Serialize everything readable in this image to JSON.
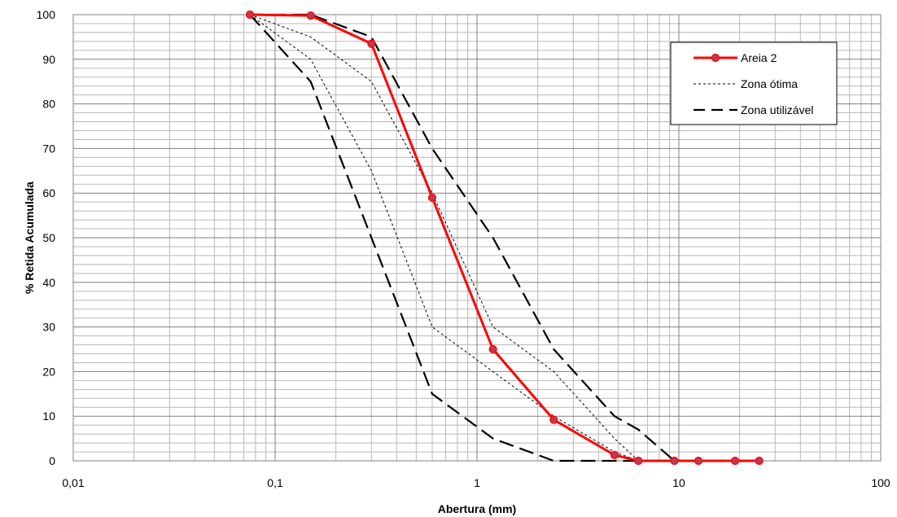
{
  "chart_data": {
    "type": "line",
    "xscale": "log",
    "xlim": [
      0.01,
      100
    ],
    "ylim": [
      0,
      100
    ],
    "xlabel": "Abertura (mm)",
    "ylabel": "% Retida Acumulada",
    "xtick_labels": [
      "0,01",
      "0,1",
      "1",
      "10",
      "100"
    ],
    "ytick_labels": [
      "0",
      "10",
      "20",
      "30",
      "40",
      "50",
      "60",
      "70",
      "80",
      "90",
      "100"
    ],
    "grid": true,
    "legend_position": "top-right",
    "legend": [
      "Areia 2",
      "Zona ótima",
      "Zona utilizável"
    ],
    "series": [
      {
        "name": "Areia 2",
        "style": "solid-markers",
        "color": "#ff0000",
        "marker_color": "#c0394f",
        "points": [
          [
            0.075,
            100
          ],
          [
            0.15,
            99.8
          ],
          [
            0.3,
            93.5
          ],
          [
            0.6,
            59
          ],
          [
            1.2,
            25
          ],
          [
            2.4,
            9.2
          ],
          [
            4.8,
            1.3
          ],
          [
            6.3,
            0
          ],
          [
            9.5,
            0
          ],
          [
            12.5,
            0
          ],
          [
            19,
            0
          ],
          [
            25,
            0
          ]
        ]
      },
      {
        "name": "Zona ótima",
        "style": "dotted",
        "color": "#000000",
        "points": [
          [
            0.075,
            100
          ],
          [
            0.15,
            95
          ],
          [
            0.3,
            85
          ],
          [
            0.6,
            60
          ],
          [
            1.2,
            30
          ],
          [
            2.4,
            20
          ],
          [
            4.8,
            5
          ],
          [
            6.3,
            0
          ],
          [
            9.5,
            0
          ]
        ]
      },
      {
        "name": "",
        "style": "dotted",
        "color": "#000000",
        "points": [
          [
            0.075,
            100
          ],
          [
            0.15,
            90
          ],
          [
            0.3,
            65
          ],
          [
            0.6,
            30
          ],
          [
            1.2,
            20
          ],
          [
            2.4,
            10
          ],
          [
            4.8,
            2
          ],
          [
            6.3,
            0
          ],
          [
            9.5,
            0
          ]
        ]
      },
      {
        "name": "Zona utilizável",
        "style": "dashed",
        "color": "#000000",
        "points": [
          [
            0.075,
            100
          ],
          [
            0.15,
            100
          ],
          [
            0.3,
            95
          ],
          [
            0.6,
            70
          ],
          [
            1.2,
            50
          ],
          [
            2.4,
            25
          ],
          [
            4.8,
            10
          ],
          [
            6.3,
            7
          ],
          [
            9.5,
            0
          ]
        ]
      },
      {
        "name": "",
        "style": "dashed",
        "color": "#000000",
        "points": [
          [
            0.075,
            100
          ],
          [
            0.15,
            85
          ],
          [
            0.3,
            50
          ],
          [
            0.6,
            15
          ],
          [
            1.2,
            5
          ],
          [
            2.4,
            0
          ],
          [
            4.8,
            0
          ],
          [
            9.5,
            0
          ]
        ]
      }
    ]
  }
}
